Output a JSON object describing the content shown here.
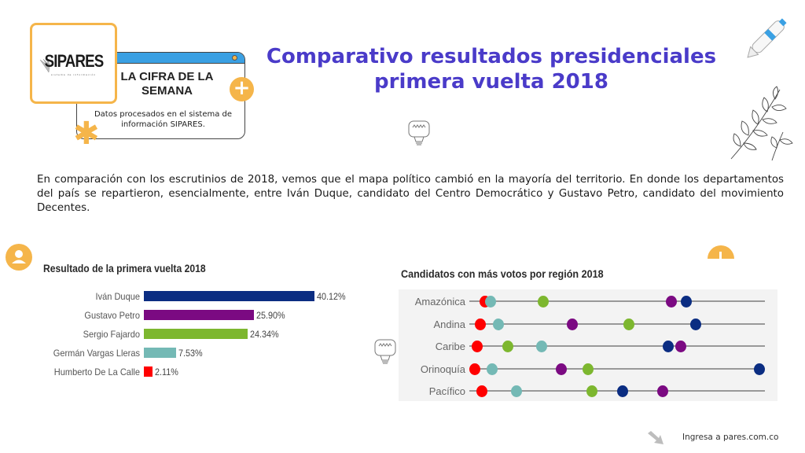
{
  "header": {
    "logo_text": "SIPARES",
    "logo_subtitle": "sistema de información",
    "cifra_title": "LA CIFRA DE LA SEMANA",
    "cifra_description": "Datos procesados en el sistema de información SIPARES."
  },
  "page_title": "Comparativo resultados presidenciales primera vuelta 2018",
  "intro_text": "En comparación con los escrutinios de 2018, vemos que el mapa político cambió en la mayoría del territorio. En donde  los departamentos del país se repartieron, esencialmente, entre Iván Duque, candidato del Centro Democrático y Gustavo Petro, candidato del movimiento Decentes.",
  "footer": {
    "link_text": "Ingresa a pares.com.co"
  },
  "colors": {
    "accent": "#f5b54a",
    "title": "#4a3bc9",
    "window_bar": "#3aa0e3",
    "duque": "#0b2d82",
    "petro": "#7b0a82",
    "fajardo": "#7db72f",
    "vargas_lleras": "#74b9b5",
    "de_la_calle": "#ff0000"
  },
  "chart_data": [
    {
      "type": "bar",
      "orientation": "horizontal",
      "title": "Resultado de la primera vuelta 2018",
      "categories": [
        "Iván Duque",
        "Gustavo Petro",
        "Sergio Fajardo",
        "Germán Vargas Lleras",
        "Humberto De La Calle"
      ],
      "values": [
        40.12,
        25.9,
        24.34,
        7.53,
        2.11
      ],
      "value_labels": [
        "40.12%",
        "25.90%",
        "24.34%",
        "7.53%",
        "2.11%"
      ],
      "bar_colors": [
        "#0b2d82",
        "#7b0a82",
        "#7db72f",
        "#74b9b5",
        "#ff0000"
      ],
      "xlabel": "",
      "ylabel": "",
      "xlim": [
        0,
        40.12
      ],
      "grid": false,
      "legend": "none"
    },
    {
      "type": "scatter",
      "subtype": "dot-plot",
      "title": "Candidatos con más votos por región 2018",
      "categories": [
        "Amazónica",
        "Andina",
        "Caribe",
        "Orinoquía",
        "Pacífico"
      ],
      "value_scale": "relative position along each line, 0 = left end, 1 = right end (no axis shown)",
      "xlim": [
        0,
        1
      ],
      "grid": false,
      "legend": "none",
      "series": [
        {
          "name": "Humberto De La Calle",
          "color": "#ff0000",
          "values": [
            0.053,
            0.037,
            0.027,
            0.019,
            0.043
          ]
        },
        {
          "name": "Germán Vargas Lleras",
          "color": "#74b9b5",
          "values": [
            0.072,
            0.098,
            0.245,
            0.077,
            0.16
          ]
        },
        {
          "name": "Sergio Fajardo",
          "color": "#7db72f",
          "values": [
            0.25,
            0.54,
            0.13,
            0.402,
            0.414
          ]
        },
        {
          "name": "Gustavo Petro",
          "color": "#7b0a82",
          "values": [
            0.684,
            0.348,
            0.715,
            0.311,
            0.654
          ]
        },
        {
          "name": "Iván Duque",
          "color": "#0b2d82",
          "values": [
            0.734,
            0.766,
            0.672,
            0.981,
            0.519
          ]
        }
      ]
    }
  ]
}
